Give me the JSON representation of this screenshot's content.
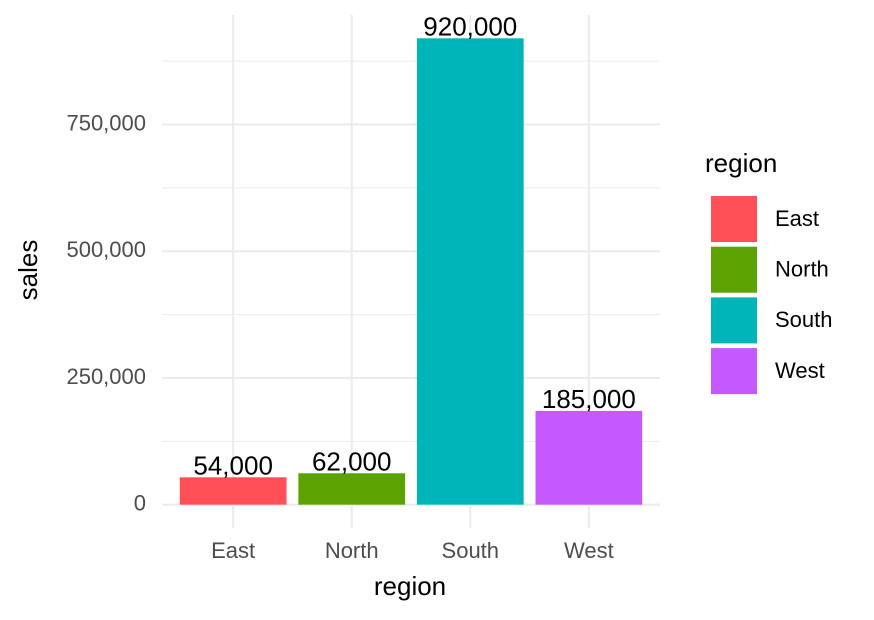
{
  "chart_data": {
    "type": "bar",
    "x_label": "region",
    "y_label": "sales",
    "categories": [
      "East",
      "North",
      "South",
      "West"
    ],
    "values": [
      54000,
      62000,
      920000,
      185000
    ],
    "value_labels": [
      "54,000",
      "62,000",
      "920,000",
      "185,000"
    ],
    "colors": [
      "#ff5058",
      "#5ba300",
      "#00b5b8",
      "#c558ff"
    ],
    "ylim": [
      -46000,
      966000
    ],
    "yticks": [
      0,
      {
        "value": 250000,
        "label": "250,000"
      },
      {
        "value": 500000,
        "label": "500,000"
      },
      {
        "value": 750000,
        "label": "750,000"
      }
    ],
    "minor_yticks": [
      125000,
      375000,
      625000,
      875000
    ],
    "grid": true,
    "legend_title": "region",
    "legend_position": "right"
  }
}
